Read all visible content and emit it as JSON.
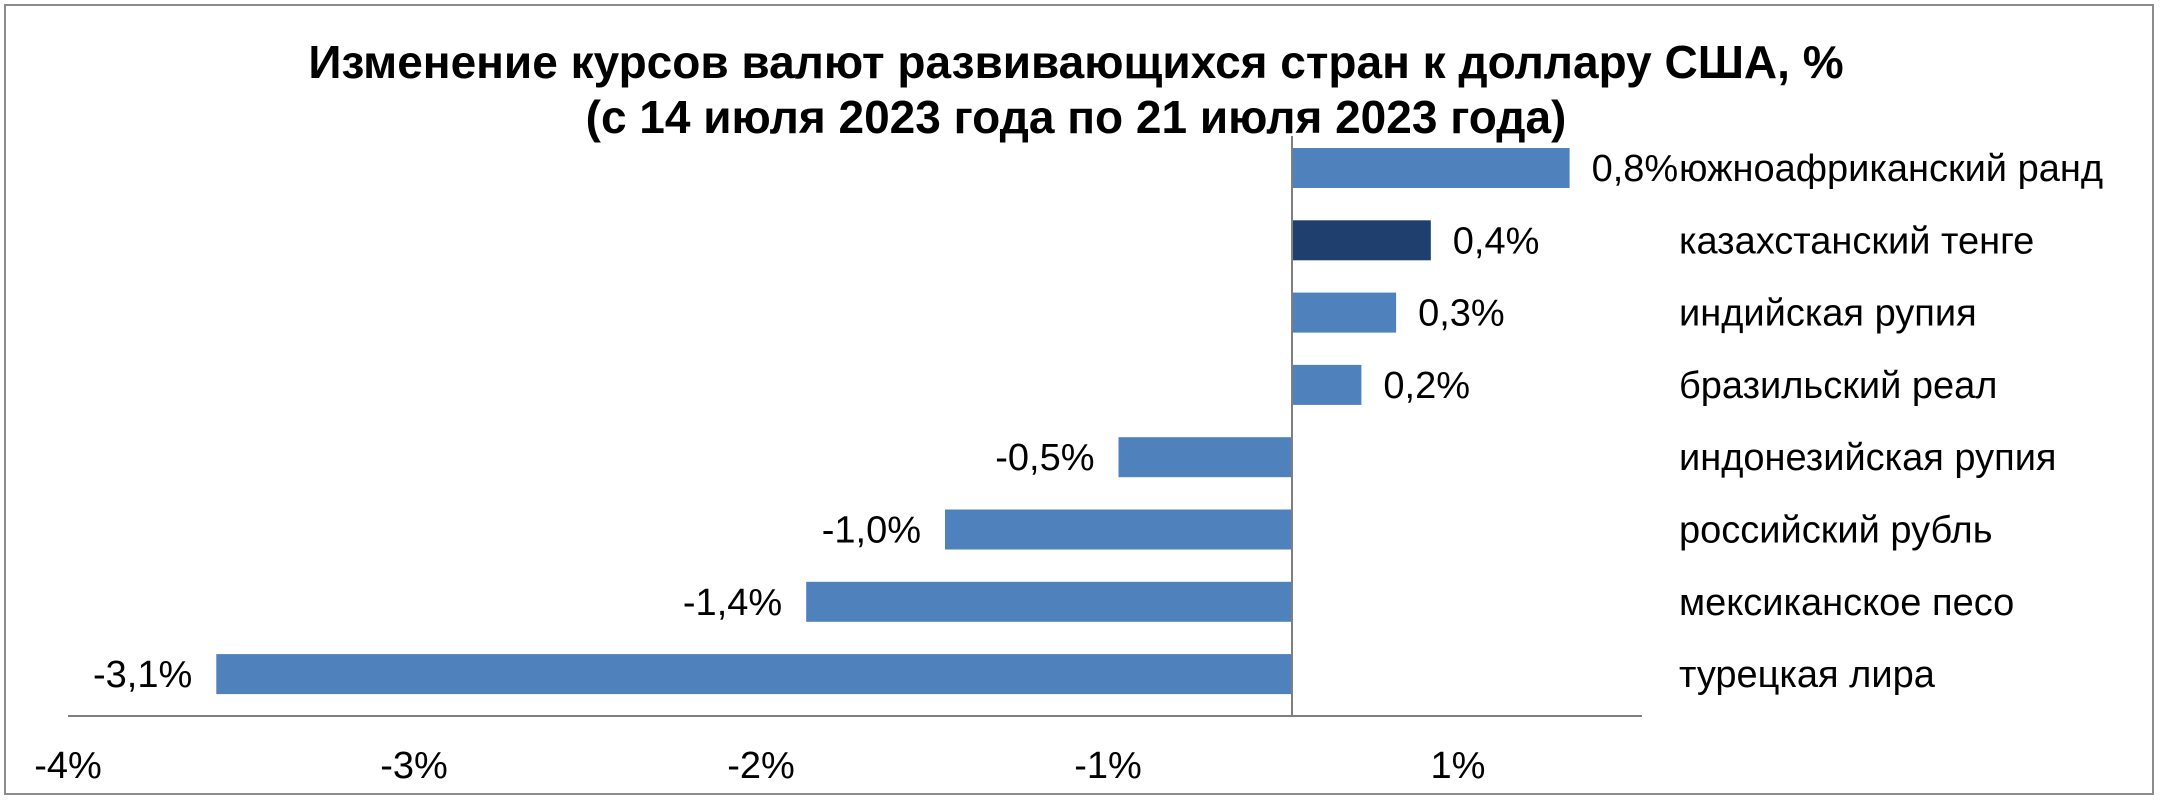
{
  "chart_data": {
    "type": "bar",
    "orientation": "horizontal",
    "title": "Изменение курсов валют развивающихся стран к доллару США, %",
    "subtitle": "(с 14 июля 2023 года по 21 июля 2023 года)",
    "categories": [
      "южноафриканский ранд",
      "казахстанский тенге",
      "индийская рупия",
      "бразильский реал",
      "индонезийская рупия",
      "российский рубль",
      "мексиканское песо",
      "турецкая лира"
    ],
    "values": [
      0.8,
      0.4,
      0.3,
      0.2,
      -0.5,
      -1.0,
      -1.4,
      -3.1
    ],
    "data_labels": [
      "0,8%",
      "0,4%",
      "0,3%",
      "0,2%",
      "-0,5%",
      "-1,0%",
      "-1,4%",
      "-3,1%"
    ],
    "highlight_index": 1,
    "xlim": [
      -3.5,
      1.0
    ],
    "x_ticks": [
      "-4%",
      "-3%",
      "-2%",
      "-1%",
      "1%"
    ],
    "xlabel": "",
    "ylabel": "",
    "grid": false,
    "legend": "none",
    "colors": {
      "bar": "#4f81bd",
      "highlight": "#1f3f6e",
      "axis": "#7f7f7f"
    }
  }
}
